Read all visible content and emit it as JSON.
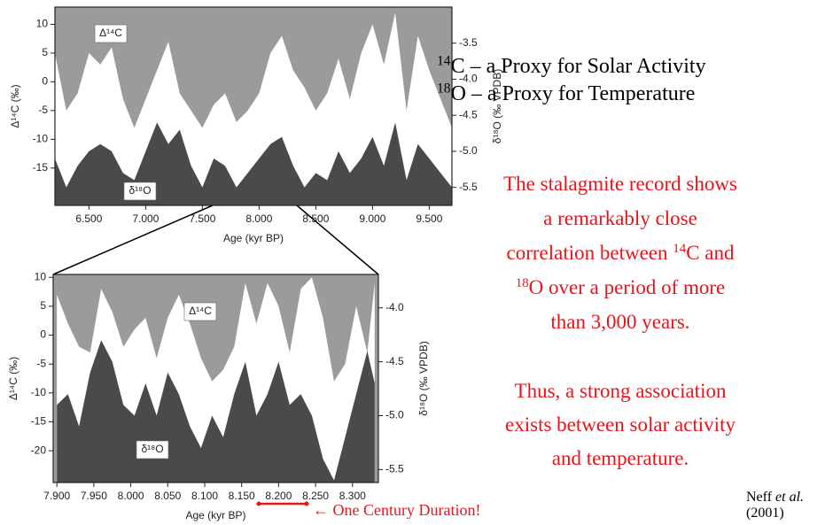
{
  "chart_data": [
    {
      "type": "area",
      "x": [
        6200,
        6300,
        6400,
        6500,
        6600,
        6700,
        6800,
        6900,
        7000,
        7100,
        7200,
        7300,
        7400,
        7500,
        7600,
        7700,
        7800,
        7900,
        8000,
        8100,
        8200,
        8300,
        8400,
        8500,
        8600,
        8700,
        8800,
        8900,
        9000,
        9100,
        9200,
        9300,
        9400,
        9500,
        9600,
        9700
      ],
      "series": [
        {
          "name": "Δ¹⁴C",
          "color": "#ffffff",
          "values": [
            5,
            -5,
            -2,
            5,
            3,
            6,
            -3,
            -8,
            -3,
            2,
            7,
            -2,
            -5,
            -8,
            -4,
            -2,
            -7,
            -5,
            -2,
            5,
            8,
            2,
            -1,
            -5,
            -2,
            4,
            -3,
            5,
            10,
            3,
            12,
            -5,
            8,
            2,
            -3,
            -8
          ]
        },
        {
          "name": "δ¹⁸O",
          "color": "#4a4a4a",
          "axis": "y2",
          "values": [
            -5.1,
            -5.5,
            -5.2,
            -5.0,
            -4.9,
            -5.0,
            -5.3,
            -5.4,
            -5.0,
            -4.6,
            -4.9,
            -4.7,
            -5.2,
            -5.5,
            -5.1,
            -5.2,
            -5.5,
            -5.3,
            -5.1,
            -4.9,
            -4.8,
            -5.2,
            -5.5,
            -5.3,
            -5.4,
            -5.0,
            -5.3,
            -5.1,
            -4.8,
            -5.2,
            -4.6,
            -5.4,
            -4.9,
            -5.1,
            -5.3,
            -5.5
          ]
        }
      ],
      "background": "#9b9b9b",
      "xlabel": "Age (kyr BP)",
      "ylabel": "Δ¹⁴C (‰)",
      "y2label": "δ¹⁸O (‰ VPDB)",
      "xlim": [
        6200,
        9700
      ],
      "ylim": [
        -21.5,
        13
      ],
      "y2lim": [
        -5.75,
        -3.0
      ],
      "xticks": [
        {
          "value": 6500,
          "label": "6.500"
        },
        {
          "value": 7000,
          "label": "7.000"
        },
        {
          "value": 7500,
          "label": "7.500"
        },
        {
          "value": 8000,
          "label": "8.000"
        },
        {
          "value": 8500,
          "label": "8.500"
        },
        {
          "value": 9000,
          "label": "9.000"
        },
        {
          "value": 9500,
          "label": "9.500"
        }
      ],
      "yticks": [
        -15,
        -10,
        -5,
        0,
        5,
        10
      ],
      "y2ticks": [
        -5.5,
        {
          "value": -5,
          "label": "-5.0"
        },
        -4.5,
        {
          "value": -4,
          "label": "-4.0"
        },
        -3.5
      ]
    },
    {
      "type": "area",
      "x": [
        7900,
        7915,
        7930,
        7945,
        7960,
        7975,
        7990,
        8005,
        8020,
        8035,
        8050,
        8065,
        8080,
        8095,
        8110,
        8125,
        8140,
        8155,
        8170,
        8185,
        8200,
        8215,
        8230,
        8245,
        8260,
        8275,
        8290,
        8305,
        8320,
        8330
      ],
      "series": [
        {
          "name": "Δ¹⁴C",
          "color": "#ffffff",
          "values": [
            7,
            2,
            -2,
            -3,
            8,
            4,
            -2,
            1,
            3,
            -4,
            3,
            7,
            2,
            -4,
            -8,
            -6,
            -2,
            9,
            2,
            9,
            5,
            -3,
            8,
            10,
            3,
            -8,
            -5,
            5,
            -3,
            9
          ]
        },
        {
          "name": "δ¹⁸O",
          "color": "#4a4a4a",
          "axis": "y2",
          "values": [
            -4.9,
            -4.8,
            -5.1,
            -4.6,
            -4.3,
            -4.5,
            -4.9,
            -5.0,
            -4.7,
            -5.0,
            -4.6,
            -4.8,
            -5.1,
            -5.3,
            -5.0,
            -5.2,
            -4.8,
            -4.5,
            -5.0,
            -4.8,
            -4.5,
            -4.9,
            -4.8,
            -5.0,
            -5.4,
            -5.6,
            -5.2,
            -4.8,
            -4.4,
            -4.7
          ]
        }
      ],
      "background": "#9b9b9b",
      "xlabel": "Age (kyr BP)",
      "ylabel": "Δ¹⁴C (‰)",
      "y2label": "δ¹⁸O (‰ VPDB)",
      "xlim": [
        7895,
        8335
      ],
      "ylim": [
        -25.5,
        10.5
      ],
      "y2lim": [
        -5.62,
        -3.69
      ],
      "xticks": [
        {
          "value": 7900,
          "label": "7.900"
        },
        {
          "value": 7950,
          "label": "7.950"
        },
        {
          "value": 8000,
          "label": "8.000"
        },
        {
          "value": 8050,
          "label": "8.050"
        },
        {
          "value": 8100,
          "label": "8.100"
        },
        {
          "value": 8150,
          "label": "8.150"
        },
        {
          "value": 8200,
          "label": "8.200"
        },
        {
          "value": 8250,
          "label": "8.250"
        },
        {
          "value": 8300,
          "label": "8.300"
        }
      ],
      "yticks": [
        -20,
        -15,
        -10,
        -5,
        0,
        5,
        10
      ],
      "y2ticks": [
        -5.5,
        {
          "value": -5,
          "label": "-5.0"
        },
        -4.5,
        {
          "value": -4,
          "label": "-4.0"
        }
      ]
    }
  ],
  "proxies": [
    [
      {
        "sup": "14"
      },
      {
        "text": "C – a Proxy for Solar Activity"
      }
    ],
    [
      {
        "sup": "18"
      },
      {
        "text": "O – a Proxy for Temperature"
      }
    ]
  ],
  "statement": [
    [
      {
        "text": "The stalagmite record shows"
      }
    ],
    [
      {
        "text": "a remarkably close"
      }
    ],
    [
      {
        "text": "correlation between "
      },
      {
        "sup": "14"
      },
      {
        "text": "C and"
      }
    ],
    [
      {
        "sup": "18"
      },
      {
        "text": "O over a period of more"
      }
    ],
    [
      {
        "text": "than 3,000 years."
      }
    ]
  ],
  "conclusion": [
    [
      {
        "text": "Thus, a strong association"
      }
    ],
    [
      {
        "text": "exists between solar activity"
      }
    ],
    [
      {
        "text": "and temperature."
      }
    ]
  ],
  "citation": [
    [
      {
        "text": "Neff "
      },
      {
        "italic": "et al."
      },
      {
        "text": " (2001)"
      }
    ]
  ],
  "century_note": [
    [
      {
        "text": "← One Century Duration!"
      }
    ]
  ]
}
